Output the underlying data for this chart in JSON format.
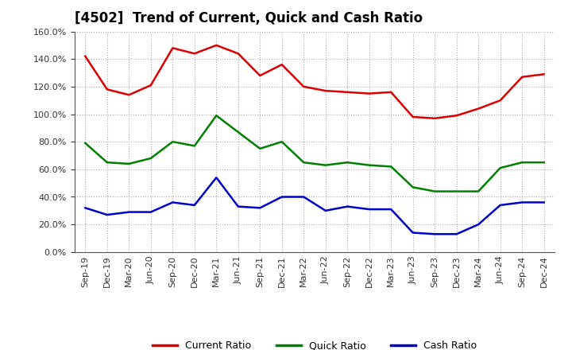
{
  "title": "[4502]  Trend of Current, Quick and Cash Ratio",
  "labels": [
    "Sep-19",
    "Dec-19",
    "Mar-20",
    "Jun-20",
    "Sep-20",
    "Dec-20",
    "Mar-21",
    "Jun-21",
    "Sep-21",
    "Dec-21",
    "Mar-22",
    "Jun-22",
    "Sep-22",
    "Dec-22",
    "Mar-23",
    "Jun-23",
    "Sep-23",
    "Dec-23",
    "Mar-24",
    "Jun-24",
    "Sep-24",
    "Dec-24"
  ],
  "current_ratio": [
    1.42,
    1.18,
    1.14,
    1.21,
    1.48,
    1.44,
    1.5,
    1.44,
    1.28,
    1.36,
    1.2,
    1.17,
    1.16,
    1.15,
    1.16,
    0.98,
    0.97,
    0.99,
    1.04,
    1.1,
    1.27,
    1.29
  ],
  "quick_ratio": [
    0.79,
    0.65,
    0.64,
    0.68,
    0.8,
    0.77,
    0.99,
    0.87,
    0.75,
    0.8,
    0.65,
    0.63,
    0.65,
    0.63,
    0.62,
    0.47,
    0.44,
    0.44,
    0.44,
    0.61,
    0.65,
    0.65
  ],
  "cash_ratio": [
    0.32,
    0.27,
    0.29,
    0.29,
    0.36,
    0.34,
    0.54,
    0.33,
    0.32,
    0.4,
    0.4,
    0.3,
    0.33,
    0.31,
    0.31,
    0.14,
    0.13,
    0.13,
    0.2,
    0.34,
    0.36,
    0.36
  ],
  "current_color": "#dd0000",
  "quick_color": "#008000",
  "cash_color": "#0000cc",
  "bg_color": "#ffffff",
  "plot_bg_color": "#ffffff",
  "grid_color": "#aaaaaa",
  "legend_labels": [
    "Current Ratio",
    "Quick Ratio",
    "Cash Ratio"
  ],
  "title_fontsize": 12,
  "tick_fontsize": 8,
  "legend_fontsize": 9,
  "linewidth": 1.8,
  "ylim_max": 1.6,
  "ytick_step": 0.2
}
